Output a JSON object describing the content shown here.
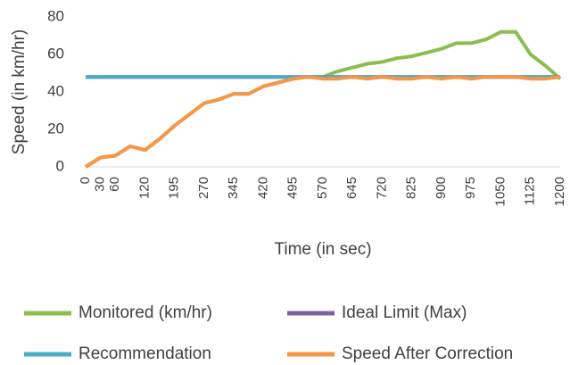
{
  "chart_data": {
    "type": "line",
    "xlabel": "Time (in sec)",
    "ylabel": "Speed (in km/hr)",
    "categories": [
      "0",
      "30",
      "60",
      null,
      "120",
      null,
      "195",
      null,
      "270",
      null,
      "345",
      null,
      "420",
      null,
      "495",
      null,
      "570",
      null,
      "645",
      null,
      "720",
      null,
      "825",
      null,
      "900",
      null,
      "975",
      null,
      "1050",
      null,
      "1125",
      null,
      "1200"
    ],
    "ylim": [
      0,
      80
    ],
    "yticks": [
      0,
      20,
      40,
      60,
      80
    ],
    "grid": false,
    "legend": "bottom",
    "series": [
      {
        "name": "Monitored (km/hr)",
        "color": "#8cbd50",
        "values": [
          0,
          5,
          6,
          11,
          9,
          15,
          22,
          28,
          34,
          36,
          39,
          39,
          43,
          45,
          47,
          48,
          48,
          51,
          53,
          55,
          56,
          58,
          59,
          61,
          63,
          66,
          66,
          68,
          72,
          72,
          60,
          54,
          47
        ]
      },
      {
        "name": "Ideal  Limit (Max)",
        "color": "#7f5fa3",
        "values": [
          48,
          48,
          48,
          48,
          48,
          48,
          48,
          48,
          48,
          48,
          48,
          48,
          48,
          48,
          48,
          48,
          48,
          48,
          48,
          48,
          48,
          48,
          48,
          48,
          48,
          48,
          48,
          48,
          48,
          48,
          48,
          48,
          48
        ]
      },
      {
        "name": "Recommendation",
        "color": "#4aacc6",
        "values": [
          48,
          48,
          48,
          48,
          48,
          48,
          48,
          48,
          48,
          48,
          48,
          48,
          48,
          48,
          48,
          48,
          48,
          48,
          48,
          48,
          48,
          48,
          48,
          48,
          48,
          48,
          48,
          48,
          48,
          48,
          48,
          48,
          48
        ]
      },
      {
        "name": "Speed After Correction",
        "color": "#f79646",
        "values": [
          0,
          5,
          6,
          11,
          9,
          15,
          22,
          28,
          34,
          36,
          39,
          39,
          43,
          45,
          47,
          48,
          47,
          47,
          48,
          47,
          48,
          47,
          47,
          48,
          47,
          48,
          47,
          48,
          48,
          48,
          47,
          47,
          48
        ]
      }
    ]
  }
}
